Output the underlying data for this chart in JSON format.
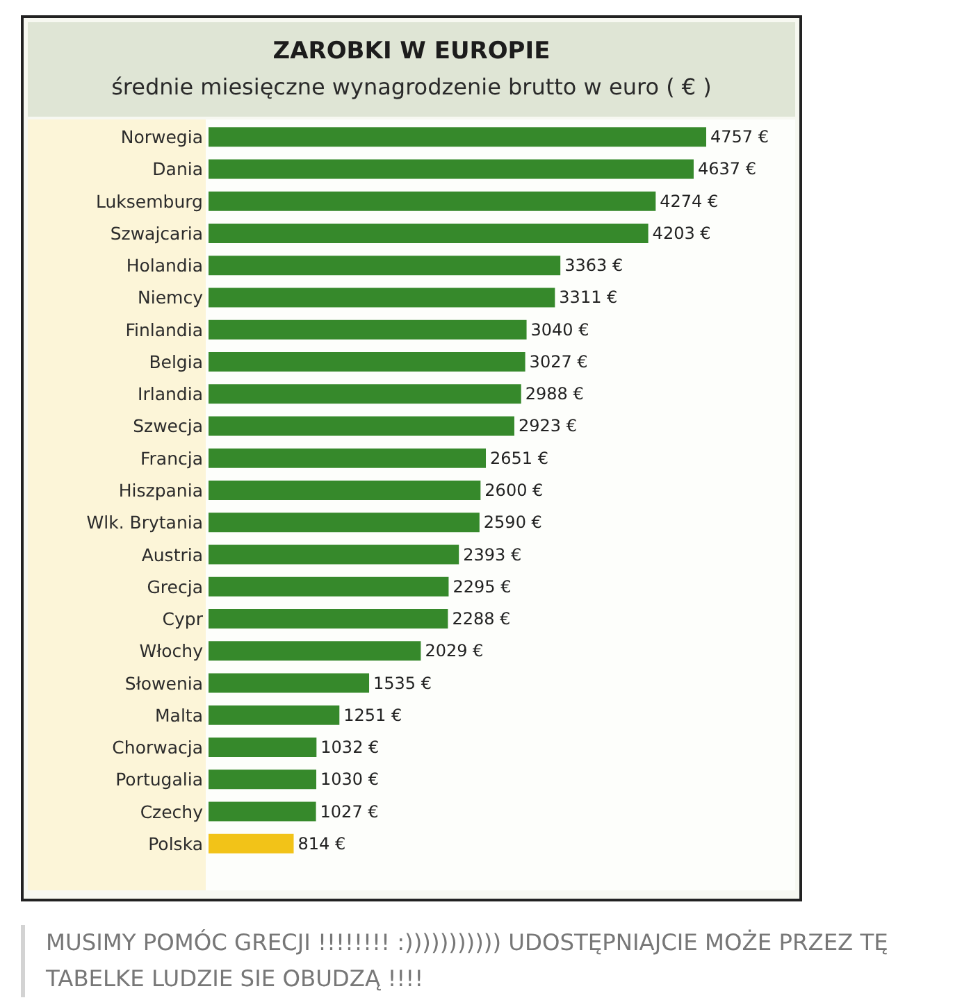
{
  "chart_data": {
    "type": "bar",
    "orientation": "horizontal",
    "title": "ZAROBKI W EUROPIE",
    "subtitle": "średnie miesięczne wynagrodzenie brutto w euro ( € )",
    "categories": [
      "Norwegia",
      "Dania",
      "Luksemburg",
      "Szwajcaria",
      "Holandia",
      "Niemcy",
      "Finlandia",
      "Belgia",
      "Irlandia",
      "Szwecja",
      "Francja",
      "Hiszpania",
      "Wlk. Brytania",
      "Austria",
      "Grecja",
      "Cypr",
      "Włochy",
      "Słowenia",
      "Malta",
      "Chorwacja",
      "Portugalia",
      "Czechy",
      "Polska"
    ],
    "values": [
      4757,
      4637,
      4274,
      4203,
      3363,
      3311,
      3040,
      3027,
      2988,
      2923,
      2651,
      2600,
      2590,
      2393,
      2295,
      2288,
      2029,
      1535,
      1251,
      1032,
      1030,
      1027,
      814
    ],
    "colors": [
      "#36892b",
      "#36892b",
      "#36892b",
      "#36892b",
      "#36892b",
      "#36892b",
      "#36892b",
      "#36892b",
      "#36892b",
      "#36892b",
      "#36892b",
      "#36892b",
      "#36892b",
      "#36892b",
      "#36892b",
      "#36892b",
      "#36892b",
      "#36892b",
      "#36892b",
      "#36892b",
      "#36892b",
      "#36892b",
      "#f2c318"
    ],
    "value_labels": [
      "4757 €",
      "4637 €",
      "4274 €",
      "4203 €",
      "3363 €",
      "3311 €",
      "3040 €",
      "3027 €",
      "2988 €",
      "2923 €",
      "2651 €",
      "2600 €",
      "2590 €",
      "2393 €",
      "2295 €",
      "2288 €",
      "2029 €",
      "1535 €",
      "1251 €",
      "1032 €",
      "1030 €",
      "1027 €",
      "814 €"
    ],
    "tick_labels": "y",
    "annotations": [
      "MUSIMY POMÓC GRECJI !!!!!!!! :))))))))))) UDOSTĘPNIAJCIE MOŻE PRZEZ TĘ TABELKE LUDZIE SIE OBUDZĄ !!!!"
    ]
  }
}
